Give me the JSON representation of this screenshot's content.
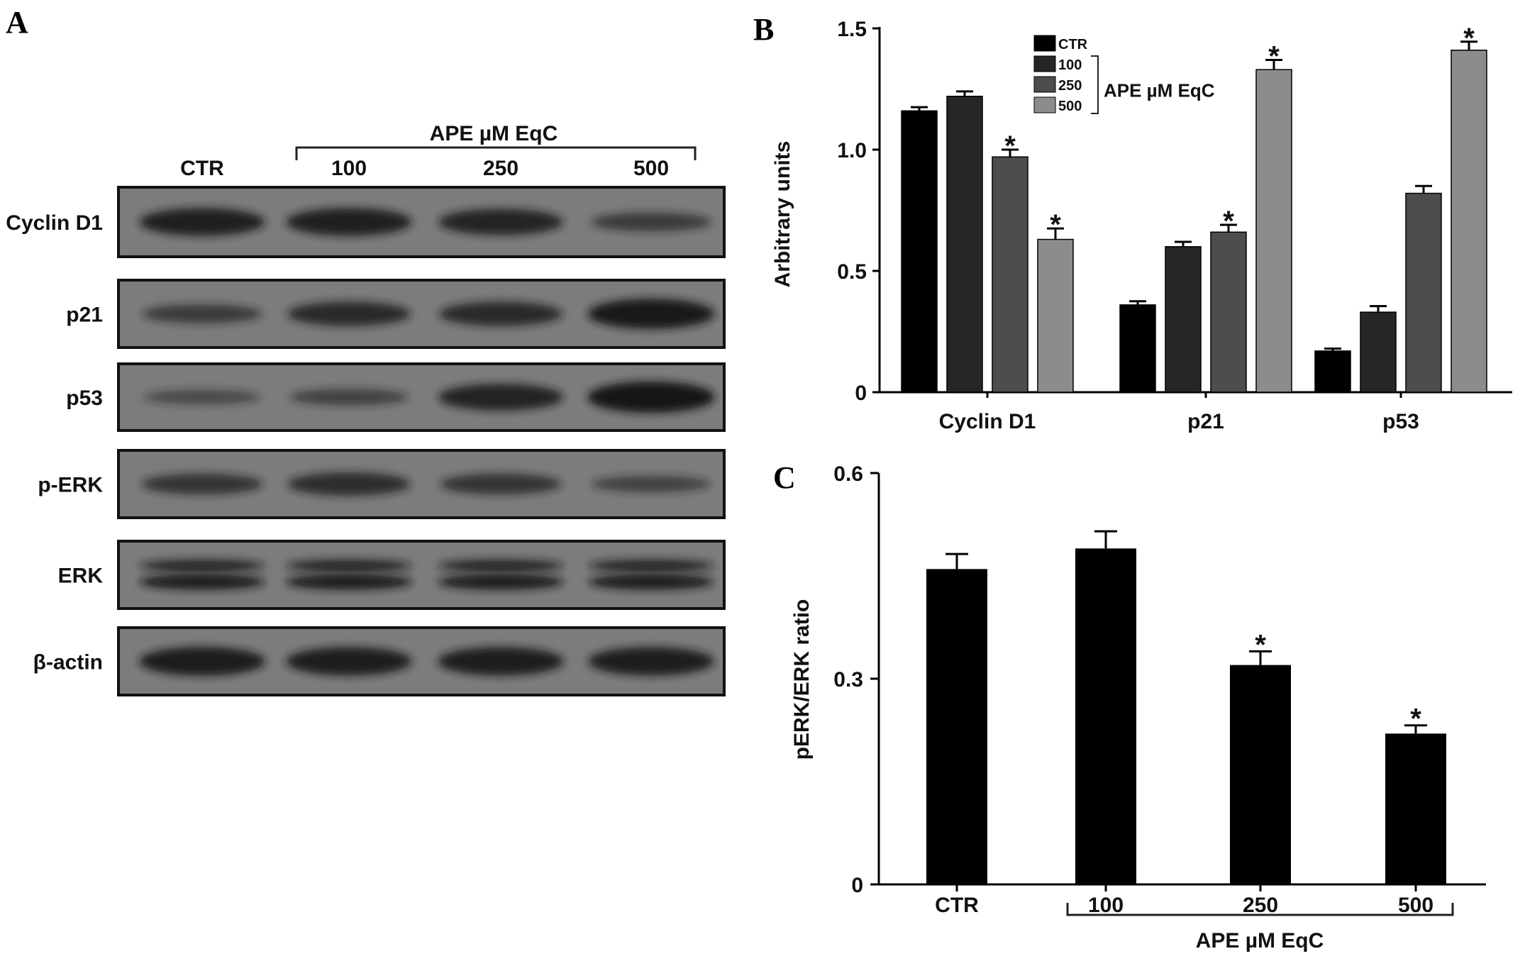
{
  "panel_a": {
    "letter": "A",
    "group_label": "APE µM EqC",
    "lanes": [
      "CTR",
      "100",
      "250",
      "500"
    ],
    "blots": [
      {
        "label": "Cyclin D1",
        "intensity": [
          0.85,
          0.85,
          0.78,
          0.45
        ]
      },
      {
        "label": "p21",
        "intensity": [
          0.45,
          0.7,
          0.7,
          0.95
        ]
      },
      {
        "label": "p53",
        "intensity": [
          0.25,
          0.35,
          0.8,
          1.0
        ]
      },
      {
        "label": "p-ERK",
        "intensity": [
          0.55,
          0.65,
          0.55,
          0.35
        ]
      },
      {
        "label": "ERK",
        "intensity": [
          0.85,
          0.9,
          0.85,
          0.85
        ]
      },
      {
        "label": "β-actin",
        "intensity": [
          0.9,
          0.88,
          0.88,
          0.88
        ]
      }
    ],
    "colors": {
      "background": "#7c7c7c",
      "band": "#141414"
    }
  },
  "chart_data": [
    {
      "panel": "B",
      "type": "bar",
      "ylabel": "Arbitrary units",
      "ylim": [
        0,
        1.5
      ],
      "yticks": [
        "0",
        "0.5",
        "1.0",
        "1.5"
      ],
      "categories": [
        "Cyclin D1",
        "p21",
        "p53"
      ],
      "legend": {
        "entries": [
          "CTR",
          "100",
          "250",
          "500"
        ],
        "group_label": "APE µM EqC",
        "placement": "top-center"
      },
      "series": [
        {
          "name": "CTR",
          "color": "#000000",
          "values": [
            1.16,
            0.36,
            0.17
          ],
          "errors": [
            0.015,
            0.015,
            0.01
          ],
          "significant": [
            false,
            false,
            false
          ]
        },
        {
          "name": "100",
          "color": "#262626",
          "values": [
            1.22,
            0.6,
            0.33
          ],
          "errors": [
            0.02,
            0.02,
            0.025
          ],
          "significant": [
            false,
            false,
            false
          ]
        },
        {
          "name": "250",
          "color": "#4d4d4d",
          "values": [
            0.97,
            0.66,
            0.82
          ],
          "errors": [
            0.03,
            0.03,
            0.03
          ],
          "significant": [
            true,
            true,
            false
          ]
        },
        {
          "name": "500",
          "color": "#8c8c8c",
          "values": [
            0.63,
            1.33,
            1.41
          ],
          "errors": [
            0.045,
            0.04,
            0.035
          ],
          "significant": [
            true,
            true,
            true
          ]
        }
      ],
      "significance_marker": "*"
    },
    {
      "panel": "C",
      "type": "bar",
      "ylabel": "pERK/ERK ratio",
      "ylim": [
        0,
        0.6
      ],
      "yticks": [
        "0",
        "0.3",
        "0.6"
      ],
      "categories": [
        "CTR",
        "100",
        "250",
        "500"
      ],
      "group_label": "APE µM EqC",
      "values": [
        0.46,
        0.49,
        0.32,
        0.22
      ],
      "errors": [
        0.022,
        0.025,
        0.02,
        0.012
      ],
      "significant": [
        false,
        false,
        true,
        true
      ],
      "significance_marker": "*",
      "color": "#000000"
    }
  ]
}
